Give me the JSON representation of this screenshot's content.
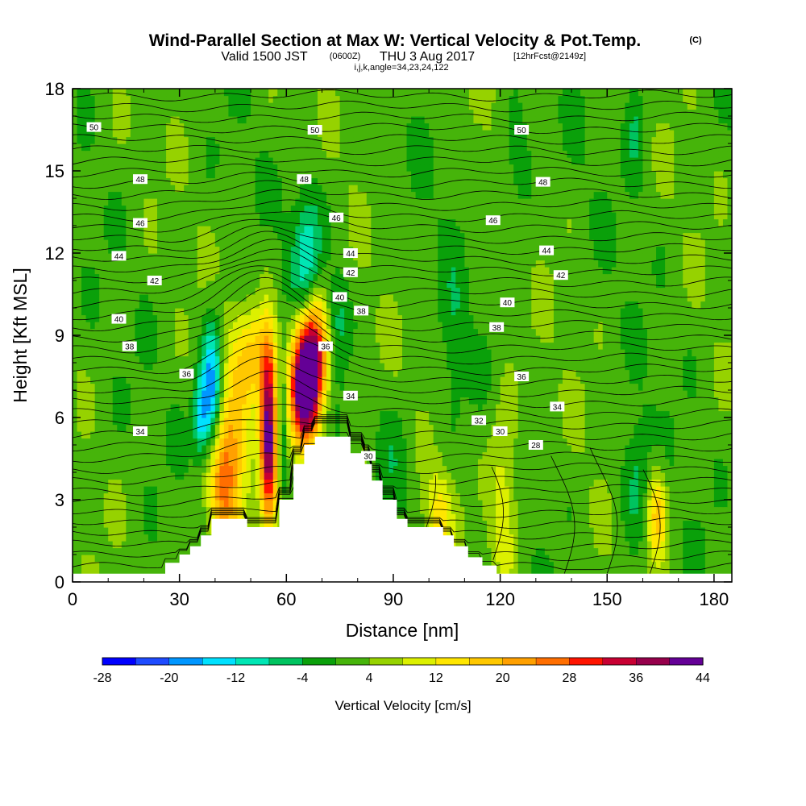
{
  "title": {
    "main": "Wind-Parallel Section at Max W: Vertical Velocity & Pot.Temp.",
    "copyright": "(C)",
    "valid_a": "Valid 1500 JST",
    "valid_utc": "(0600Z)",
    "valid_b": "THU 3 Aug 2017",
    "fcst": "[12hrFcst@2149z]",
    "indices": "i,j,k,angle=34,23,24,122"
  },
  "colors": {
    "bins": [
      "#0000ff",
      "#1e4bff",
      "#0096ff",
      "#00e1ff",
      "#00e6b4",
      "#00c35f",
      "#0aa00a",
      "#46b40a",
      "#96d200",
      "#dcf000",
      "#ffe600",
      "#ffc800",
      "#ffa000",
      "#ff6e00",
      "#ff1400",
      "#c80032",
      "#96004b",
      "#640096"
    ],
    "terrain": "#ffffff",
    "contour": "#000000"
  },
  "chart_data": {
    "type": "heatmap",
    "xlabel": "Distance [nm]",
    "ylabel": "Height [Kft MSL]",
    "xlim": [
      0,
      185
    ],
    "ylim": [
      0,
      18
    ],
    "xticks": [
      0,
      30,
      60,
      90,
      120,
      150,
      180
    ],
    "yticks": [
      0,
      3,
      6,
      9,
      12,
      15,
      18
    ],
    "colorbar": {
      "label": "Vertical Velocity [cm/s]",
      "boundaries": [
        -32,
        -28,
        -24,
        -20,
        -16,
        -12,
        -8,
        -4,
        0,
        4,
        8,
        12,
        16,
        20,
        24,
        28,
        32,
        36,
        40,
        44,
        48
      ],
      "tick_values": [
        -28,
        -20,
        -12,
        -4,
        4,
        12,
        20,
        28,
        36,
        44
      ]
    },
    "terrain_profile": [
      [
        0,
        0.3
      ],
      [
        26,
        0.3
      ],
      [
        26,
        0.7
      ],
      [
        30,
        0.7
      ],
      [
        30,
        1.0
      ],
      [
        33,
        1.0
      ],
      [
        33,
        1.3
      ],
      [
        36,
        1.3
      ],
      [
        36,
        1.7
      ],
      [
        39,
        1.7
      ],
      [
        39,
        2.3
      ],
      [
        49,
        2.3
      ],
      [
        49,
        2.0
      ],
      [
        58,
        2.0
      ],
      [
        58,
        3.0
      ],
      [
        62,
        3.0
      ],
      [
        62,
        4.3
      ],
      [
        65,
        4.3
      ],
      [
        65,
        5.0
      ],
      [
        68,
        5.0
      ],
      [
        68,
        5.3
      ],
      [
        78,
        5.3
      ],
      [
        78,
        4.7
      ],
      [
        82,
        4.7
      ],
      [
        82,
        4.3
      ],
      [
        84,
        4.3
      ],
      [
        84,
        3.7
      ],
      [
        87,
        3.7
      ],
      [
        87,
        3.0
      ],
      [
        91,
        3.0
      ],
      [
        91,
        2.3
      ],
      [
        94,
        2.3
      ],
      [
        94,
        2.0
      ],
      [
        104,
        2.0
      ],
      [
        104,
        1.7
      ],
      [
        107,
        1.7
      ],
      [
        107,
        1.3
      ],
      [
        111,
        1.3
      ],
      [
        111,
        0.9
      ],
      [
        115,
        0.9
      ],
      [
        115,
        0.6
      ],
      [
        119,
        0.6
      ],
      [
        119,
        0.3
      ],
      [
        185,
        0.3
      ]
    ],
    "vertical_velocity_features": [
      {
        "x": 42,
        "z": 3.5,
        "sx": 3,
        "sz": 1.8,
        "w": 20
      },
      {
        "x": 46,
        "z": 5.5,
        "sx": 3,
        "sz": 2.5,
        "w": 12
      },
      {
        "x": 55,
        "z": 5.5,
        "sx": 1.6,
        "sz": 2.2,
        "w": 40
      },
      {
        "x": 52,
        "z": 8.3,
        "sx": 3.5,
        "sz": 1.2,
        "w": 14
      },
      {
        "x": 65,
        "z": 7.0,
        "sx": 2.8,
        "sz": 1.5,
        "w": 44
      },
      {
        "x": 68,
        "z": 8.5,
        "sx": 3,
        "sz": 1.5,
        "w": 30
      },
      {
        "x": 39,
        "z": 7.0,
        "sx": 2,
        "sz": 1.6,
        "w": -22
      },
      {
        "x": 36,
        "z": 6.0,
        "sx": 1.5,
        "sz": 1,
        "w": -14
      },
      {
        "x": 59,
        "z": 5.5,
        "sx": 0.8,
        "sz": 2,
        "w": -8
      },
      {
        "x": 66,
        "z": 11.8,
        "sx": 3,
        "sz": 1.8,
        "w": -14
      },
      {
        "x": 74,
        "z": 9.5,
        "sx": 2.5,
        "sz": 1.3,
        "w": -10
      },
      {
        "x": 90,
        "z": 4.0,
        "sx": 4,
        "sz": 1.5,
        "w": -6
      },
      {
        "x": 82,
        "z": 3.0,
        "sx": 2,
        "sz": 1.2,
        "w": 8
      },
      {
        "x": 103,
        "z": 2.5,
        "sx": 3,
        "sz": 1.2,
        "w": 10
      },
      {
        "x": 121,
        "z": 3.0,
        "sx": 3,
        "sz": 2.5,
        "w": 10
      },
      {
        "x": 164,
        "z": 2.6,
        "sx": 2,
        "sz": 1.2,
        "w": 16
      },
      {
        "x": 158,
        "z": 3.7,
        "sx": 3,
        "sz": 1.5,
        "w": -8
      },
      {
        "x": 158,
        "z": 16.8,
        "sx": 2,
        "sz": 1.5,
        "w": -6
      },
      {
        "x": 125,
        "z": 15.0,
        "sx": 3,
        "sz": 1.5,
        "w": -6
      },
      {
        "x": 107,
        "z": 9.0,
        "sx": 2.5,
        "sz": 2,
        "w": -5
      }
    ],
    "potential_temperature_labels": [
      {
        "value": "50",
        "x": 6,
        "z": 16.6
      },
      {
        "value": "50",
        "x": 68,
        "z": 16.5
      },
      {
        "value": "50",
        "x": 126,
        "z": 16.5
      },
      {
        "value": "48",
        "x": 19,
        "z": 14.7
      },
      {
        "value": "48",
        "x": 65,
        "z": 14.7
      },
      {
        "value": "48",
        "x": 132,
        "z": 14.6
      },
      {
        "value": "46",
        "x": 19,
        "z": 13.1
      },
      {
        "value": "46",
        "x": 74,
        "z": 13.3
      },
      {
        "value": "46",
        "x": 118,
        "z": 13.2
      },
      {
        "value": "44",
        "x": 13,
        "z": 11.9
      },
      {
        "value": "44",
        "x": 78,
        "z": 12.0
      },
      {
        "value": "44",
        "x": 133,
        "z": 12.1
      },
      {
        "value": "42",
        "x": 23,
        "z": 11.0
      },
      {
        "value": "42",
        "x": 78,
        "z": 11.3
      },
      {
        "value": "42",
        "x": 137,
        "z": 11.2
      },
      {
        "value": "40",
        "x": 13,
        "z": 9.6
      },
      {
        "value": "40",
        "x": 75,
        "z": 10.4
      },
      {
        "value": "40",
        "x": 122,
        "z": 10.2
      },
      {
        "value": "38",
        "x": 16,
        "z": 8.6
      },
      {
        "value": "38",
        "x": 81,
        "z": 9.9
      },
      {
        "value": "38",
        "x": 119,
        "z": 9.3
      },
      {
        "value": "36",
        "x": 32,
        "z": 7.6
      },
      {
        "value": "36",
        "x": 71,
        "z": 8.6
      },
      {
        "value": "36",
        "x": 126,
        "z": 7.5
      },
      {
        "value": "34",
        "x": 19,
        "z": 5.5
      },
      {
        "value": "34",
        "x": 78,
        "z": 6.8
      },
      {
        "value": "34",
        "x": 136,
        "z": 6.4
      },
      {
        "value": "32",
        "x": 114,
        "z": 5.9
      },
      {
        "value": "30",
        "x": 120,
        "z": 5.5
      },
      {
        "value": "30",
        "x": 83,
        "z": 4.6
      },
      {
        "value": "28",
        "x": 130,
        "z": 5.0
      }
    ]
  }
}
